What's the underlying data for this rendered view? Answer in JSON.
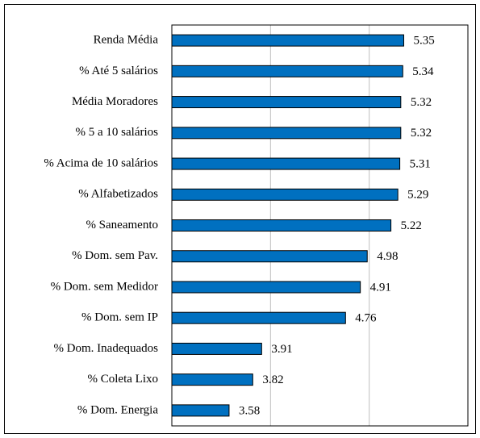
{
  "chart_data": {
    "type": "barh",
    "categories": [
      "Renda Média",
      "% Até 5 salários",
      "Média Moradores",
      "% 5 a 10 salários",
      "% Acima de 10 salários",
      "% Alfabetizados",
      "% Saneamento",
      "% Dom. sem Pav.",
      "% Dom. sem Medidor",
      "% Dom. sem IP",
      "% Dom. Inadequados",
      "% Coleta Lixo",
      "% Dom. Energia"
    ],
    "values": [
      5.35,
      5.34,
      5.32,
      5.32,
      5.31,
      5.29,
      5.22,
      4.98,
      4.91,
      4.76,
      3.91,
      3.82,
      3.58
    ],
    "color": "#0070c0",
    "xlim": [
      3,
      6
    ],
    "xticks": [
      3,
      4,
      5,
      6
    ],
    "grid": true
  }
}
